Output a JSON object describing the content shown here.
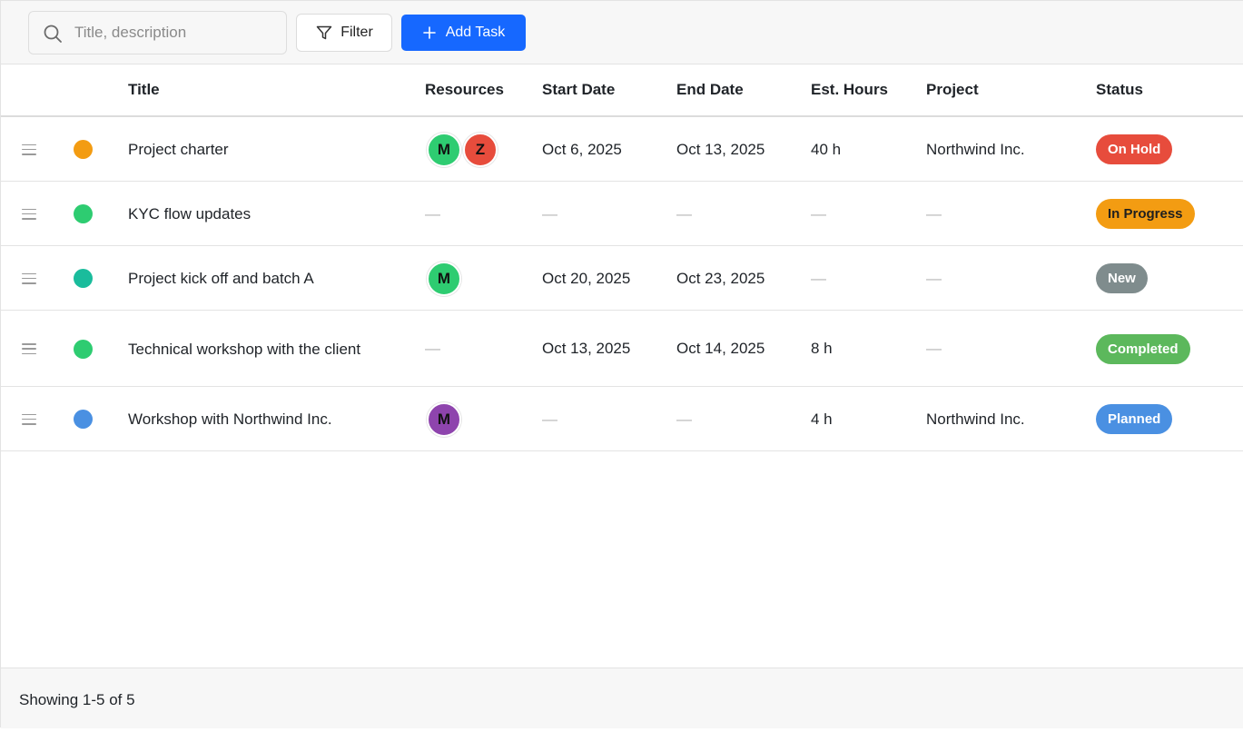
{
  "toolbar": {
    "search_placeholder": "Title, description",
    "filter_label": "Filter",
    "add_task_label": "Add Task"
  },
  "table": {
    "columns": [
      "Title",
      "Resources",
      "Start Date",
      "End Date",
      "Est. Hours",
      "Project",
      "Status"
    ],
    "rows": [
      {
        "title": "Project charter",
        "dot_color": "#f39c12",
        "resources": [
          {
            "initial": "M",
            "color": "#2ecc71"
          },
          {
            "initial": "Z",
            "color": "#e74c3c"
          }
        ],
        "start": "Oct 6, 2025",
        "end": "Oct 13, 2025",
        "hours": "40 h",
        "project": "Northwind Inc.",
        "status": "On Hold",
        "status_color": "#e74c3c",
        "status_text_dark": false
      },
      {
        "title": "KYC flow updates",
        "dot_color": "#2ecc71",
        "resources": [],
        "start": "—",
        "end": "—",
        "hours": "—",
        "project": "—",
        "status": "In Progress",
        "status_color": "#f39c12",
        "status_text_dark": true
      },
      {
        "title": "Project kick off and batch A",
        "dot_color": "#1abc9c",
        "resources": [
          {
            "initial": "M",
            "color": "#2ecc71"
          }
        ],
        "start": "Oct 20, 2025",
        "end": "Oct 23, 2025",
        "hours": "—",
        "project": "—",
        "status": "New",
        "status_color": "#7f8c8d",
        "status_text_dark": false
      },
      {
        "title": "Technical workshop with the client",
        "dot_color": "#2ecc71",
        "resources": [],
        "start": "Oct 13, 2025",
        "end": "Oct 14, 2025",
        "hours": "8 h",
        "project": "—",
        "status": "Completed",
        "status_color": "#5cb85c",
        "status_text_dark": false
      },
      {
        "title": "Workshop with Northwind Inc.",
        "dot_color": "#4a90e2",
        "resources": [
          {
            "initial": "M",
            "color": "#8e44ad"
          }
        ],
        "start": "—",
        "end": "—",
        "hours": "4 h",
        "project": "Northwind Inc.",
        "status": "Planned",
        "status_color": "#4a90e2",
        "status_text_dark": false
      }
    ]
  },
  "footer": {
    "summary": "Showing 1-5 of 5"
  }
}
